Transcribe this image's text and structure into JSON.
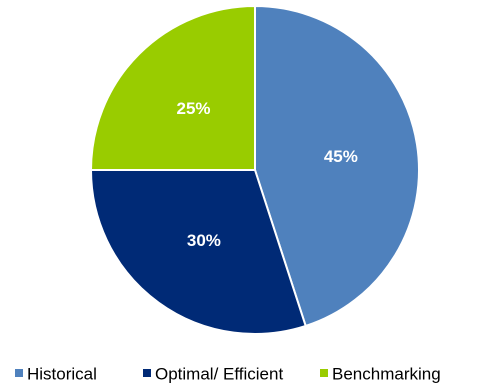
{
  "chart_data": {
    "type": "pie",
    "title": "",
    "slices": [
      {
        "name": "Historical",
        "value": 45,
        "label": "45%",
        "color": "#4F81BD"
      },
      {
        "name": "Optimal/ Efficient",
        "value": 30,
        "label": "30%",
        "color": "#002A76"
      },
      {
        "name": "Benchmarking",
        "value": 25,
        "label": "25%",
        "color": "#99CC00"
      }
    ],
    "start_angle_deg": 0,
    "direction": "clockwise",
    "legend_position": "bottom"
  }
}
